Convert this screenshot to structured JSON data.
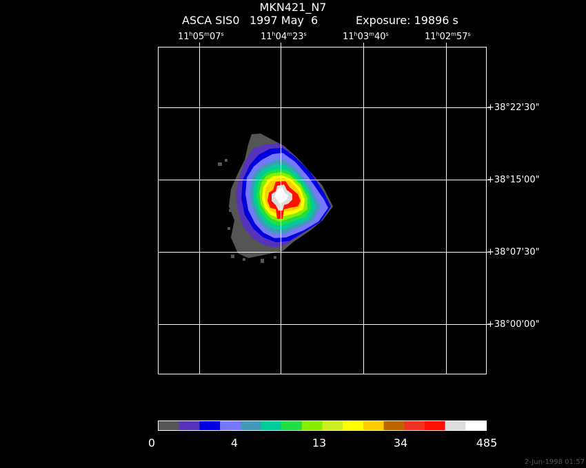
{
  "title": "MKN421_N7",
  "subtitle": {
    "instrument": "ASCA SIS0",
    "date": "1997 May  6",
    "exposure": "Exposure: 19896 s"
  },
  "ra_labels": [
    {
      "h": "11",
      "m": "05",
      "s": "07"
    },
    {
      "h": "11",
      "m": "04",
      "s": "23"
    },
    {
      "h": "11",
      "m": "03",
      "s": "40"
    },
    {
      "h": "11",
      "m": "02",
      "s": "57"
    }
  ],
  "dec_labels": [
    "+38°22'30\"",
    "+38°15'00\"",
    "+38°07'30\"",
    "+38°00'00\""
  ],
  "colorbar": {
    "colors": [
      "#555555",
      "#5533bb",
      "#0000dd",
      "#7777ff",
      "#4499bb",
      "#00cc99",
      "#22dd44",
      "#88ee00",
      "#ccee22",
      "#ffff00",
      "#ffcc00",
      "#bb6600",
      "#ee3322",
      "#ff1100",
      "#dddddd",
      "#ffffff"
    ],
    "labels": [
      "0",
      "4",
      "13",
      "34",
      "485"
    ]
  },
  "timestamp": "2-Jun-1998 01:57"
}
